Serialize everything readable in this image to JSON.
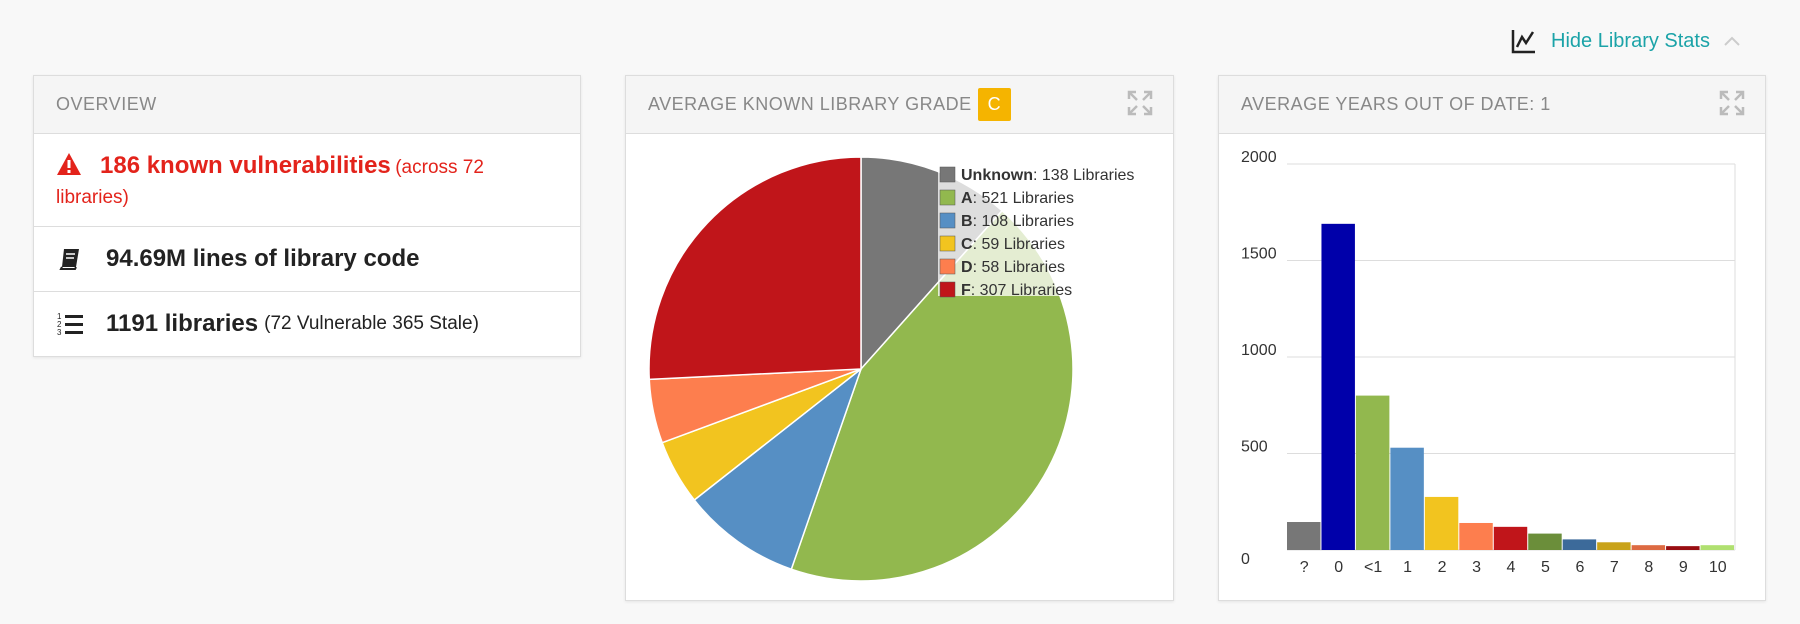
{
  "toggle": {
    "label": "Hide Library Stats"
  },
  "overview": {
    "title": "OVERVIEW",
    "vuln_big": "186 known vulnerabilities",
    "vuln_small": "(across 72 libraries)",
    "lines_big": "94.69M lines of library code",
    "libs_big": "1191 libraries",
    "libs_small": "(72 Vulnerable 365 Stale)"
  },
  "grade_panel": {
    "title": "AVERAGE KNOWN LIBRARY GRADE",
    "grade": "C"
  },
  "years_panel": {
    "title": "AVERAGE YEARS OUT OF DATE: 1"
  },
  "chart_data": [
    {
      "type": "pie",
      "title": "",
      "slices": [
        {
          "label": "Unknown",
          "suffix": ": 138 Libraries",
          "value": 138,
          "color": "#777777"
        },
        {
          "label": "A",
          "suffix": ": 521 Libraries",
          "value": 521,
          "color": "#92b84e"
        },
        {
          "label": "B",
          "suffix": ": 108 Libraries",
          "value": 108,
          "color": "#568fc4"
        },
        {
          "label": "C",
          "suffix": ": 59 Libraries",
          "value": 59,
          "color": "#f2c41f"
        },
        {
          "label": "D",
          "suffix": ": 58 Libraries",
          "value": 58,
          "color": "#fd7e4e"
        },
        {
          "label": "F",
          "suffix": ": 307 Libraries",
          "value": 307,
          "color": "#c0151a"
        }
      ],
      "legend_position": "top-right"
    },
    {
      "type": "bar",
      "categories": [
        "?",
        "0",
        "<1",
        "1",
        "2",
        "3",
        "4",
        "5",
        "6",
        "7",
        "8",
        "9",
        "10"
      ],
      "values": [
        145,
        1690,
        800,
        530,
        275,
        140,
        120,
        85,
        55,
        40,
        25,
        20,
        25
      ],
      "colors": [
        "#777777",
        "#0000aa",
        "#92b84e",
        "#568fc4",
        "#f2c41f",
        "#fd7e4e",
        "#c0151a",
        "#6b8e3a",
        "#3c6a9a",
        "#c9a31a",
        "#dd6a42",
        "#990e12",
        "#b0e070"
      ],
      "yticks": [
        0,
        500,
        1000,
        1500,
        2000
      ],
      "ylim": [
        0,
        2000
      ],
      "grid": true
    }
  ]
}
